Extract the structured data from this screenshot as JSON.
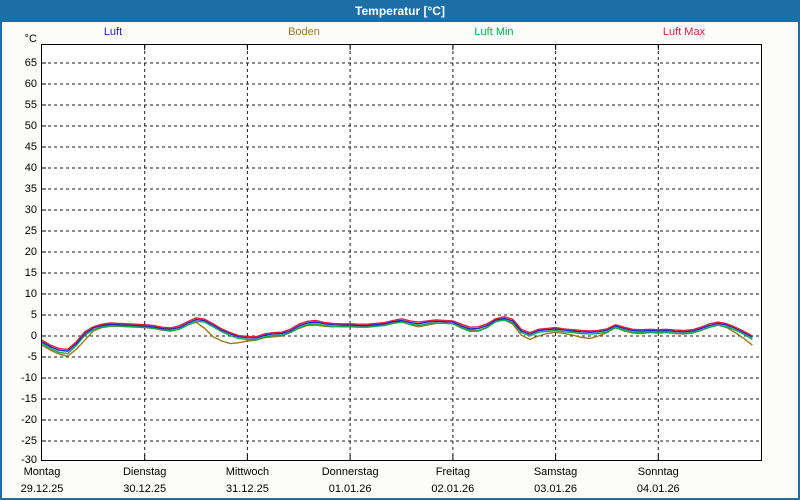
{
  "window": {
    "title": "Temperatur [°C]"
  },
  "colors": {
    "titlebar": "#1C6FA6",
    "window_border": "#1C6FA6",
    "background": "#FCFDFB",
    "grid": "#1b1b1b"
  },
  "chart_data": {
    "type": "line",
    "title": "Temperatur [°C]",
    "y_unit": "°C",
    "ylim": [
      -30,
      70
    ],
    "ytick_step": 5,
    "yticks": [
      65,
      60,
      55,
      50,
      45,
      40,
      35,
      30,
      25,
      20,
      15,
      10,
      5,
      0,
      -5,
      -10,
      -15,
      -20,
      -25,
      -30
    ],
    "grid": "dashed",
    "legend_position": "top",
    "x_days": [
      {
        "name": "Montag",
        "date": "29.12.25"
      },
      {
        "name": "Dienstag",
        "date": "30.12.25"
      },
      {
        "name": "Mittwoch",
        "date": "31.12.25"
      },
      {
        "name": "Donnerstag",
        "date": "01.01.26"
      },
      {
        "name": "Freitag",
        "date": "02.01.26"
      },
      {
        "name": "Samstag",
        "date": "03.01.26"
      },
      {
        "name": "Sonntag",
        "date": "04.01.26"
      }
    ],
    "sample_interval_hours": 2,
    "series": [
      {
        "name": "Luft",
        "color": "#2121CE",
        "values": [
          -1.4,
          -2.6,
          -3.4,
          -3.6,
          -1.8,
          0.6,
          1.9,
          2.5,
          2.8,
          2.7,
          2.6,
          2.5,
          2.4,
          2.2,
          1.8,
          1.6,
          2.0,
          3.0,
          3.9,
          3.7,
          2.6,
          1.4,
          0.5,
          -0.2,
          -0.4,
          -0.5,
          0.2,
          0.5,
          0.6,
          1.2,
          2.4,
          3.1,
          3.3,
          2.9,
          2.7,
          2.6,
          2.6,
          2.5,
          2.5,
          2.7,
          2.9,
          3.4,
          3.7,
          3.2,
          2.9,
          3.3,
          3.5,
          3.4,
          3.3,
          2.4,
          1.7,
          1.8,
          2.5,
          3.8,
          4.2,
          3.6,
          1.2,
          0.4,
          1.3,
          1.5,
          1.7,
          1.4,
          1.2,
          1.0,
          0.9,
          1.0,
          1.4,
          2.4,
          1.8,
          1.3,
          1.2,
          1.3,
          1.2,
          1.3,
          1.1,
          1.0,
          1.2,
          1.8,
          2.5,
          3.0,
          2.6,
          1.8,
          0.8,
          -0.3
        ]
      },
      {
        "name": "Boden",
        "color": "#997722",
        "values": [
          -2.2,
          -3.4,
          -4.3,
          -4.8,
          -3.2,
          -1.0,
          1.2,
          2.0,
          2.3,
          2.3,
          2.2,
          2.1,
          2.0,
          1.8,
          1.4,
          1.2,
          1.6,
          2.6,
          3.3,
          1.8,
          -0.2,
          -1.2,
          -1.8,
          -1.6,
          -1.2,
          -1.0,
          -0.4,
          -0.2,
          0.0,
          0.8,
          1.8,
          2.5,
          2.6,
          2.3,
          2.2,
          2.3,
          2.3,
          2.2,
          2.3,
          2.5,
          2.7,
          3.2,
          3.4,
          2.7,
          2.2,
          2.6,
          3.0,
          3.1,
          2.9,
          2.2,
          1.4,
          1.3,
          2.1,
          3.4,
          3.9,
          2.8,
          0.2,
          -0.8,
          0.0,
          0.6,
          0.9,
          0.6,
          0.2,
          -0.3,
          -0.6,
          0.0,
          0.8,
          2.0,
          1.2,
          0.7,
          0.6,
          0.8,
          0.7,
          0.8,
          0.6,
          0.5,
          0.7,
          1.3,
          2.1,
          2.6,
          2.0,
          0.8,
          -0.6,
          -2.2
        ]
      },
      {
        "name": "Luft Min",
        "color": "#00AE50",
        "values": [
          -1.8,
          -3.0,
          -3.9,
          -4.2,
          -2.3,
          0.2,
          1.5,
          2.2,
          2.5,
          2.4,
          2.3,
          2.2,
          2.1,
          1.9,
          1.5,
          1.2,
          1.6,
          2.6,
          3.5,
          3.3,
          2.2,
          1.0,
          0.1,
          -0.6,
          -0.8,
          -0.9,
          -0.2,
          0.1,
          0.2,
          0.8,
          2.0,
          2.7,
          2.9,
          2.5,
          2.3,
          2.2,
          2.2,
          2.1,
          2.1,
          2.3,
          2.5,
          3.0,
          3.3,
          2.8,
          2.5,
          2.9,
          3.1,
          3.0,
          2.9,
          1.9,
          1.1,
          1.2,
          2.0,
          3.4,
          3.8,
          3.2,
          0.8,
          0.0,
          0.9,
          1.1,
          1.3,
          1.0,
          0.8,
          0.6,
          0.5,
          0.6,
          1.0,
          2.0,
          1.4,
          0.9,
          0.8,
          0.9,
          0.8,
          0.9,
          0.7,
          0.6,
          0.8,
          1.4,
          2.1,
          2.6,
          2.2,
          1.4,
          0.4,
          -0.8
        ]
      },
      {
        "name": "Luft Max",
        "color": "#DC2040",
        "values": [
          -1.0,
          -2.2,
          -3.0,
          -3.2,
          -1.4,
          1.0,
          2.2,
          2.8,
          3.1,
          3.0,
          2.9,
          2.8,
          2.7,
          2.5,
          2.1,
          1.9,
          2.4,
          3.4,
          4.3,
          4.0,
          2.9,
          1.7,
          0.8,
          0.1,
          -0.1,
          -0.2,
          0.5,
          0.8,
          0.9,
          1.6,
          2.8,
          3.5,
          3.7,
          3.2,
          3.0,
          2.9,
          2.9,
          2.8,
          2.8,
          3.0,
          3.2,
          3.7,
          4.1,
          3.6,
          3.3,
          3.6,
          3.8,
          3.7,
          3.6,
          2.8,
          2.1,
          2.2,
          2.9,
          4.1,
          4.6,
          4.0,
          1.6,
          0.8,
          1.6,
          1.8,
          2.0,
          1.7,
          1.5,
          1.3,
          1.2,
          1.3,
          1.7,
          2.7,
          2.1,
          1.6,
          1.5,
          1.6,
          1.5,
          1.6,
          1.4,
          1.3,
          1.5,
          2.1,
          2.9,
          3.3,
          2.9,
          2.1,
          1.1,
          0.0
        ]
      }
    ]
  }
}
